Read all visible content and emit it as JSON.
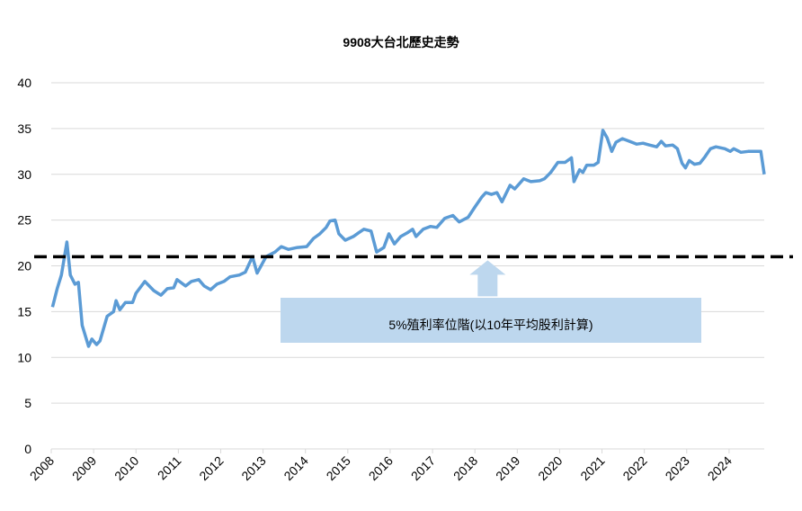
{
  "chart_data": {
    "type": "line",
    "title": "9908大台北歷史走勢",
    "x": [
      2008.03,
      2008.14,
      2008.24,
      2008.37,
      2008.45,
      2008.56,
      2008.64,
      2008.73,
      2008.88,
      2008.96,
      2009.07,
      2009.15,
      2009.32,
      2009.47,
      2009.53,
      2009.62,
      2009.75,
      2009.92,
      2010.0,
      2010.21,
      2010.42,
      2010.59,
      2010.74,
      2010.89,
      2010.97,
      2011.17,
      2011.31,
      2011.48,
      2011.61,
      2011.76,
      2011.91,
      2012.08,
      2012.22,
      2012.44,
      2012.58,
      2012.75,
      2012.86,
      2013.07,
      2013.28,
      2013.43,
      2013.6,
      2013.81,
      2014.03,
      2014.19,
      2014.34,
      2014.49,
      2014.58,
      2014.7,
      2014.79,
      2014.94,
      2015.13,
      2015.25,
      2015.38,
      2015.55,
      2015.68,
      2015.85,
      2015.97,
      2016.1,
      2016.25,
      2016.4,
      2016.53,
      2016.61,
      2016.78,
      2016.95,
      2017.1,
      2017.29,
      2017.48,
      2017.63,
      2017.84,
      2018.01,
      2018.16,
      2018.26,
      2018.39,
      2018.52,
      2018.64,
      2018.83,
      2018.94,
      2019.15,
      2019.32,
      2019.53,
      2019.64,
      2019.79,
      2019.96,
      2020.13,
      2020.28,
      2020.34,
      2020.47,
      2020.55,
      2020.64,
      2020.81,
      2020.91,
      2021.02,
      2021.12,
      2021.23,
      2021.33,
      2021.48,
      2021.65,
      2021.82,
      2021.97,
      2022.12,
      2022.29,
      2022.4,
      2022.5,
      2022.67,
      2022.78,
      2022.89,
      2022.97,
      2023.06,
      2023.18,
      2023.31,
      2023.43,
      2023.56,
      2023.69,
      2023.9,
      2024.03,
      2024.11,
      2024.28,
      2024.45,
      2024.75,
      2024.83
    ],
    "series": [
      {
        "color": "#5b9bd5",
        "values": [
          15.5,
          17.5,
          19,
          22.6,
          19,
          18,
          18.2,
          13.5,
          11.2,
          12,
          11.4,
          11.8,
          14.5,
          15,
          16.2,
          15.2,
          16,
          16,
          17,
          18.3,
          17.3,
          16.8,
          17.5,
          17.6,
          18.5,
          17.8,
          18.3,
          18.5,
          17.8,
          17.4,
          18,
          18.3,
          18.8,
          19,
          19.3,
          21,
          19.2,
          21,
          21.5,
          22.1,
          21.8,
          22,
          22.1,
          23,
          23.5,
          24.2,
          24.9,
          25,
          23.5,
          22.8,
          23.2,
          23.6,
          24,
          23.8,
          21.5,
          22,
          23.5,
          22.4,
          23.2,
          23.6,
          24,
          23.2,
          24,
          24.3,
          24.2,
          25.2,
          25.5,
          24.8,
          25.3,
          26.5,
          27.5,
          28,
          27.8,
          28,
          27,
          28.8,
          28.4,
          29.5,
          29.2,
          29.3,
          29.5,
          30.2,
          31.3,
          31.3,
          31.8,
          29.2,
          30.5,
          30.2,
          31,
          31,
          31.3,
          34.8,
          34,
          32.5,
          33.5,
          33.9,
          33.6,
          33.3,
          33.4,
          33.2,
          33,
          33.6,
          33.1,
          33.2,
          32.8,
          31.2,
          30.7,
          31.5,
          31.1,
          31.2,
          31.9,
          32.8,
          33,
          32.8,
          32.5,
          32.8,
          32.4,
          32.5,
          32.5,
          30
        ]
      }
    ],
    "xlim": [
      2008,
      2024.83
    ],
    "xticks": [
      2008,
      2009,
      2010,
      2011,
      2012,
      2013,
      2014,
      2015,
      2016,
      2017,
      2018,
      2019,
      2020,
      2021,
      2022,
      2023,
      2024
    ],
    "ylim": [
      0,
      40
    ],
    "yticks": [
      0,
      5,
      10,
      15,
      20,
      25,
      30,
      35,
      40
    ],
    "grid": true,
    "reference_line": {
      "value": 21,
      "color": "#000000",
      "style": "dashed"
    },
    "annotation": {
      "text": "5%殖利率位階(以10年平均股利計算)",
      "x": 2018.3,
      "color": "#bdd7ee"
    }
  }
}
